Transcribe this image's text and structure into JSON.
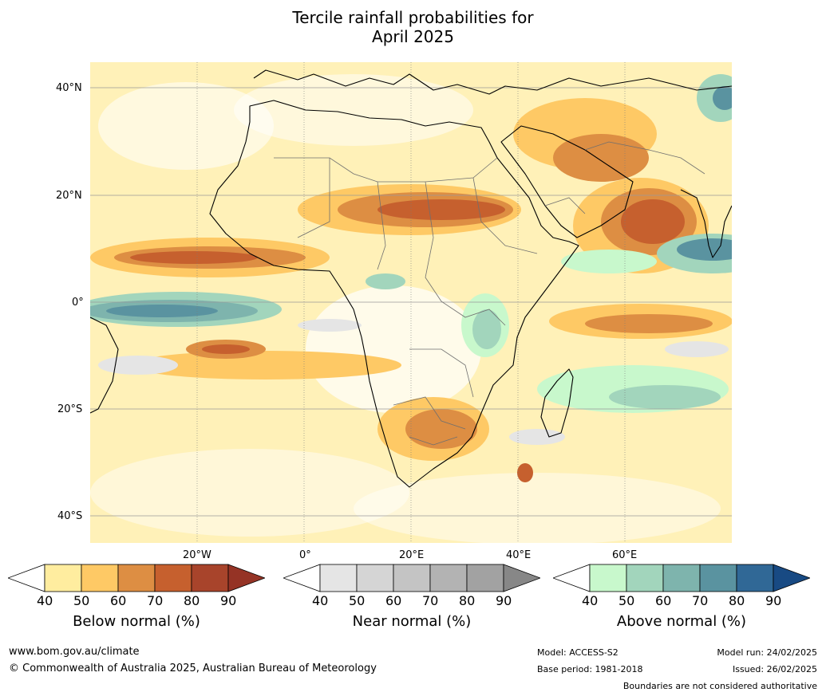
{
  "title_line1": "Tercile rainfall probabilities for",
  "title_line2": "April 2025",
  "lat_labels": [
    "40°N",
    "20°N",
    "0°",
    "20°S",
    "40°S"
  ],
  "lon_labels": [
    "20°W",
    "0°",
    "20°E",
    "40°E",
    "60°E"
  ],
  "colorbars": [
    {
      "label": "Below normal (%)",
      "ticks": [
        "40",
        "50",
        "60",
        "70",
        "80",
        "90"
      ],
      "colors": [
        "#ffffff",
        "#ffed9f",
        "#fec965",
        "#dd8e43",
        "#c6602e",
        "#a8442b",
        "#953325"
      ]
    },
    {
      "label": "Near normal (%)",
      "ticks": [
        "40",
        "50",
        "60",
        "70",
        "80",
        "90"
      ],
      "colors": [
        "#ffffff",
        "#e5e5e5",
        "#d5d5d5",
        "#c4c4c4",
        "#b3b3b3",
        "#a2a2a2",
        "#878787"
      ]
    },
    {
      "label": "Above normal (%)",
      "ticks": [
        "40",
        "50",
        "60",
        "70",
        "80",
        "90"
      ],
      "colors": [
        "#ffffff",
        "#c8f8cc",
        "#a2d5bc",
        "#7eb4ad",
        "#5a93a0",
        "#306896",
        "#184a83"
      ]
    }
  ],
  "footer": {
    "url": "www.bom.gov.au/climate",
    "copyright": "© Commonwealth of Australia 2025, Australian Bureau of Meteorology",
    "model": "Model: ACCESS-S2",
    "base_period": "Base period: 1981-2018",
    "model_run": "Model run: 24/02/2025",
    "issued": "Issued: 26/02/2025",
    "disclaimer": "Boundaries are not considered authoritative"
  }
}
